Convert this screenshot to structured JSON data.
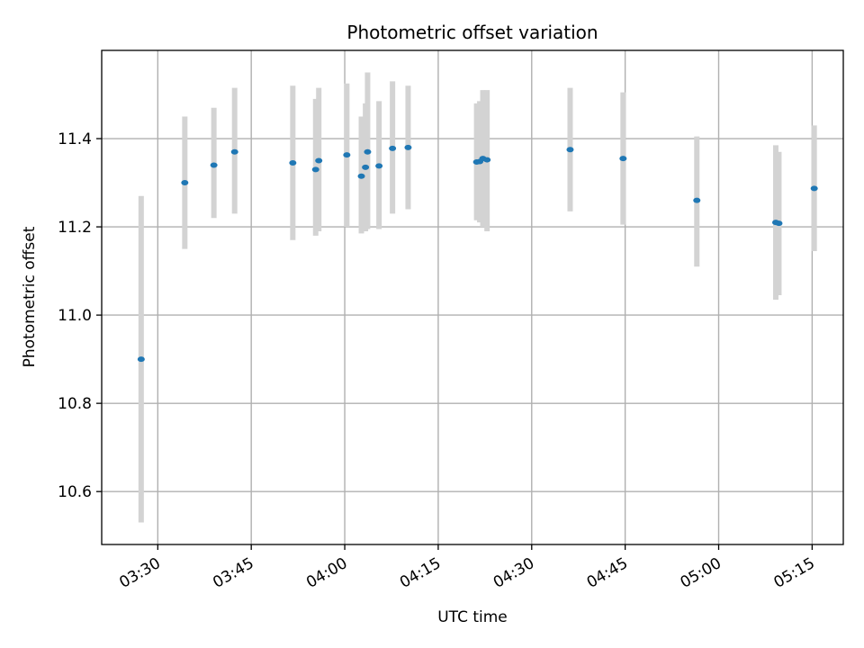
{
  "chart_data": {
    "type": "scatter",
    "title": "Photometric offset variation",
    "xlabel": "UTC time",
    "ylabel": "Photometric offset",
    "x_axis_type": "time",
    "xlim": [
      "03:21",
      "05:20"
    ],
    "ylim": [
      10.48,
      11.6
    ],
    "grid": true,
    "x_ticks": [
      "03:30",
      "03:45",
      "04:00",
      "04:15",
      "04:30",
      "04:45",
      "05:00",
      "05:15"
    ],
    "y_ticks": [
      10.6,
      10.8,
      11.0,
      11.2,
      11.4
    ],
    "y_tick_labels": [
      "10.6",
      "10.8",
      "11.0",
      "11.2",
      "11.4"
    ],
    "marker_color": "#1f77b4",
    "errorbar_color": "#d3d3d3",
    "points": [
      {
        "t": "03:27:20",
        "y": 10.9,
        "err_low": 10.53,
        "err_high": 11.27
      },
      {
        "t": "03:34:20",
        "y": 11.3,
        "err_low": 11.15,
        "err_high": 11.45
      },
      {
        "t": "03:39:00",
        "y": 11.34,
        "err_low": 11.22,
        "err_high": 11.47
      },
      {
        "t": "03:42:20",
        "y": 11.37,
        "err_low": 11.23,
        "err_high": 11.515
      },
      {
        "t": "03:51:40",
        "y": 11.345,
        "err_low": 11.17,
        "err_high": 11.52
      },
      {
        "t": "03:55:20",
        "y": 11.33,
        "err_low": 11.18,
        "err_high": 11.49
      },
      {
        "t": "03:55:50",
        "y": 11.35,
        "err_low": 11.19,
        "err_high": 11.515
      },
      {
        "t": "04:00:20",
        "y": 11.363,
        "err_low": 11.2,
        "err_high": 11.525
      },
      {
        "t": "04:02:40",
        "y": 11.315,
        "err_low": 11.185,
        "err_high": 11.45
      },
      {
        "t": "04:03:20",
        "y": 11.335,
        "err_low": 11.19,
        "err_high": 11.48
      },
      {
        "t": "04:03:40",
        "y": 11.37,
        "err_low": 11.195,
        "err_high": 11.55
      },
      {
        "t": "04:05:30",
        "y": 11.338,
        "err_low": 11.195,
        "err_high": 11.485
      },
      {
        "t": "04:07:40",
        "y": 11.378,
        "err_low": 11.23,
        "err_high": 11.53
      },
      {
        "t": "04:10:10",
        "y": 11.38,
        "err_low": 11.24,
        "err_high": 11.52
      },
      {
        "t": "04:21:10",
        "y": 11.347,
        "err_low": 11.215,
        "err_high": 11.48
      },
      {
        "t": "04:21:40",
        "y": 11.348,
        "err_low": 11.21,
        "err_high": 11.485
      },
      {
        "t": "04:22:10",
        "y": 11.355,
        "err_low": 11.2,
        "err_high": 11.51
      },
      {
        "t": "04:22:50",
        "y": 11.352,
        "err_low": 11.19,
        "err_high": 11.51
      },
      {
        "t": "04:36:10",
        "y": 11.375,
        "err_low": 11.235,
        "err_high": 11.515
      },
      {
        "t": "04:44:40",
        "y": 11.355,
        "err_low": 11.205,
        "err_high": 11.505
      },
      {
        "t": "04:56:30",
        "y": 11.26,
        "err_low": 11.11,
        "err_high": 11.405
      },
      {
        "t": "05:09:10",
        "y": 11.21,
        "err_low": 11.035,
        "err_high": 11.385
      },
      {
        "t": "05:09:40",
        "y": 11.208,
        "err_low": 11.045,
        "err_high": 11.37
      },
      {
        "t": "05:15:20",
        "y": 11.287,
        "err_low": 11.145,
        "err_high": 11.43
      }
    ]
  }
}
